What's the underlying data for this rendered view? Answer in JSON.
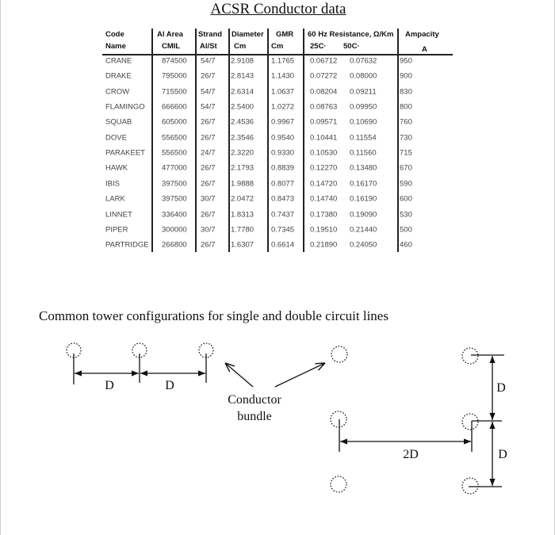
{
  "title": "ACSR Conductor data",
  "table": {
    "headers": {
      "code": [
        "Code",
        "Name"
      ],
      "al_area": [
        "Al Area",
        "CMIL"
      ],
      "strand": [
        "Strand",
        "Al/St"
      ],
      "diameter": [
        "Diameter",
        "Cm"
      ],
      "gmr": [
        "GMR",
        "Cm"
      ],
      "resistance": [
        "60 Hz Resistance, Ω/Km",
        "25C·",
        "50C·"
      ],
      "ampacity": [
        "Ampacity",
        "A"
      ]
    },
    "rows": [
      [
        "CRANE",
        "874500",
        "54/7",
        "2.9108",
        "1.1765",
        "0.06712",
        "0.07632",
        "950"
      ],
      [
        "DRAKE",
        "795000",
        "26/7",
        "2.8143",
        "1.1430",
        "0.07272",
        "0.08000",
        "900"
      ],
      [
        "CROW",
        "715500",
        "54/7",
        "2.6314",
        "1.0637",
        "0.08204",
        "0.09211",
        "830"
      ],
      [
        "FLAMINGO",
        "666600",
        "54/7",
        "2.5400",
        "1.0272",
        "0.08763",
        "0.09950",
        "800"
      ],
      [
        "SQUAB",
        "605000",
        "26/7",
        "2.4536",
        "0.9967",
        "0.09571",
        "0.10690",
        "760"
      ],
      [
        "DOVE",
        "556500",
        "26/7",
        "2.3546",
        "0.9540",
        "0.10441",
        "0.11554",
        "730"
      ],
      [
        "PARAKEET",
        "556500",
        "24/7",
        "2.3220",
        "0.9330",
        "0.10530",
        "0.11560",
        "715"
      ],
      [
        "HAWK",
        "477000",
        "26/7",
        "2.1793",
        "0.8839",
        "0.12270",
        "0.13480",
        "670"
      ],
      [
        "IBIS",
        "397500",
        "26/7",
        "1.9888",
        "0.8077",
        "0.14720",
        "0.16170",
        "590"
      ],
      [
        "LARK",
        "397500",
        "30/7",
        "2.0472",
        "0.8473",
        "0.14740",
        "0.16190",
        "600"
      ],
      [
        "LINNET",
        "336400",
        "26/7",
        "1.8313",
        "0.7437",
        "0.17380",
        "0.19090",
        "530"
      ],
      [
        "PIPER",
        "300000",
        "30/7",
        "1.7780",
        "0.7345",
        "0.19510",
        "0.21440",
        "500"
      ],
      [
        "PARTRIDGE",
        "266800",
        "26/7",
        "1.6307",
        "0.6614",
        "0.21890",
        "0.24050",
        "460"
      ]
    ]
  },
  "diagram": {
    "heading": "Common tower configurations for single and double circuit lines",
    "spacing_label": "D",
    "double_spacing_label": "2D",
    "bundle_label": [
      "Conductor",
      "bundle"
    ]
  }
}
